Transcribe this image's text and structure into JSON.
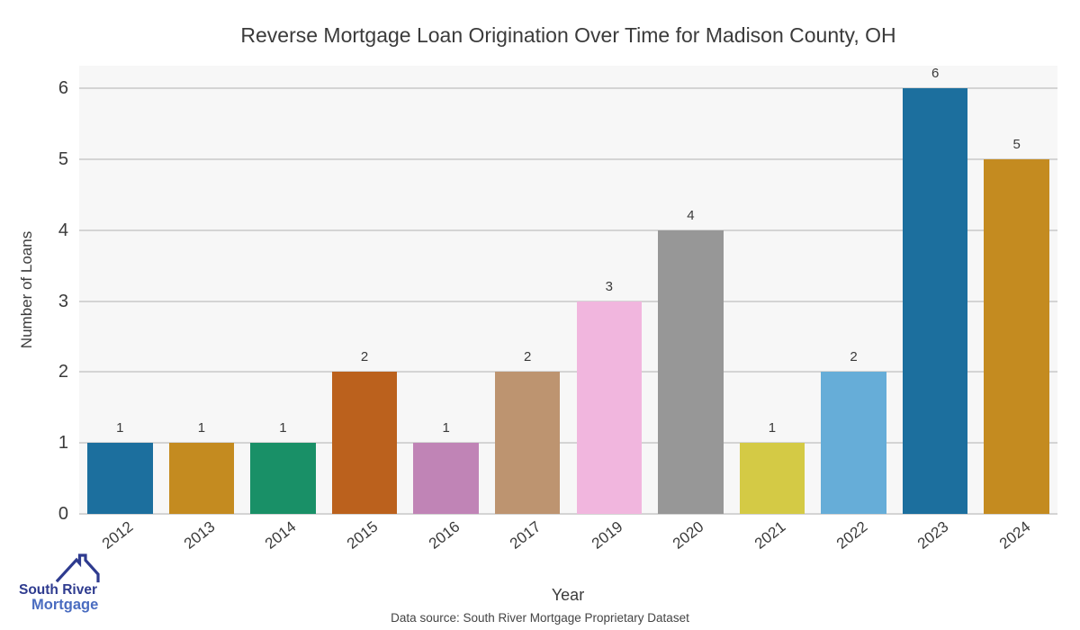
{
  "title": "Reverse Mortgage Loan Origination Over Time for Madison County, OH",
  "footer": {
    "data_source": "Data source: South River Mortgage Proprietary Dataset"
  },
  "logo": {
    "line1": "South River",
    "line2": "Mortgage",
    "line1_color": "#2e3b8f",
    "line2_color": "#4a6cc0",
    "roof_color": "#2e3b8f"
  },
  "chart_data": {
    "type": "bar",
    "title": "Reverse Mortgage Loan Origination Over Time for Madison County, OH",
    "xlabel": "Year",
    "ylabel": "Number of Loans",
    "categories": [
      "2012",
      "2013",
      "2014",
      "2015",
      "2016",
      "2017",
      "2019",
      "2020",
      "2021",
      "2022",
      "2023",
      "2024"
    ],
    "values": [
      1,
      1,
      1,
      2,
      1,
      2,
      3,
      4,
      1,
      2,
      6,
      5
    ],
    "bar_colors": [
      "#1c6f9e",
      "#c48b20",
      "#199067",
      "#bb611d",
      "#c084b6",
      "#bd9470",
      "#f1b6de",
      "#979797",
      "#d4ca45",
      "#66add8",
      "#1c6f9e",
      "#c48b20"
    ],
    "yticks": [
      0,
      1,
      2,
      3,
      4,
      5,
      6
    ],
    "ylim": [
      0,
      6.3
    ],
    "grid": true,
    "legend": "none",
    "plot_bg_color": "#f7f7f7",
    "grid_color": "#d4d4d4",
    "text_color": "#3b3b3b"
  }
}
